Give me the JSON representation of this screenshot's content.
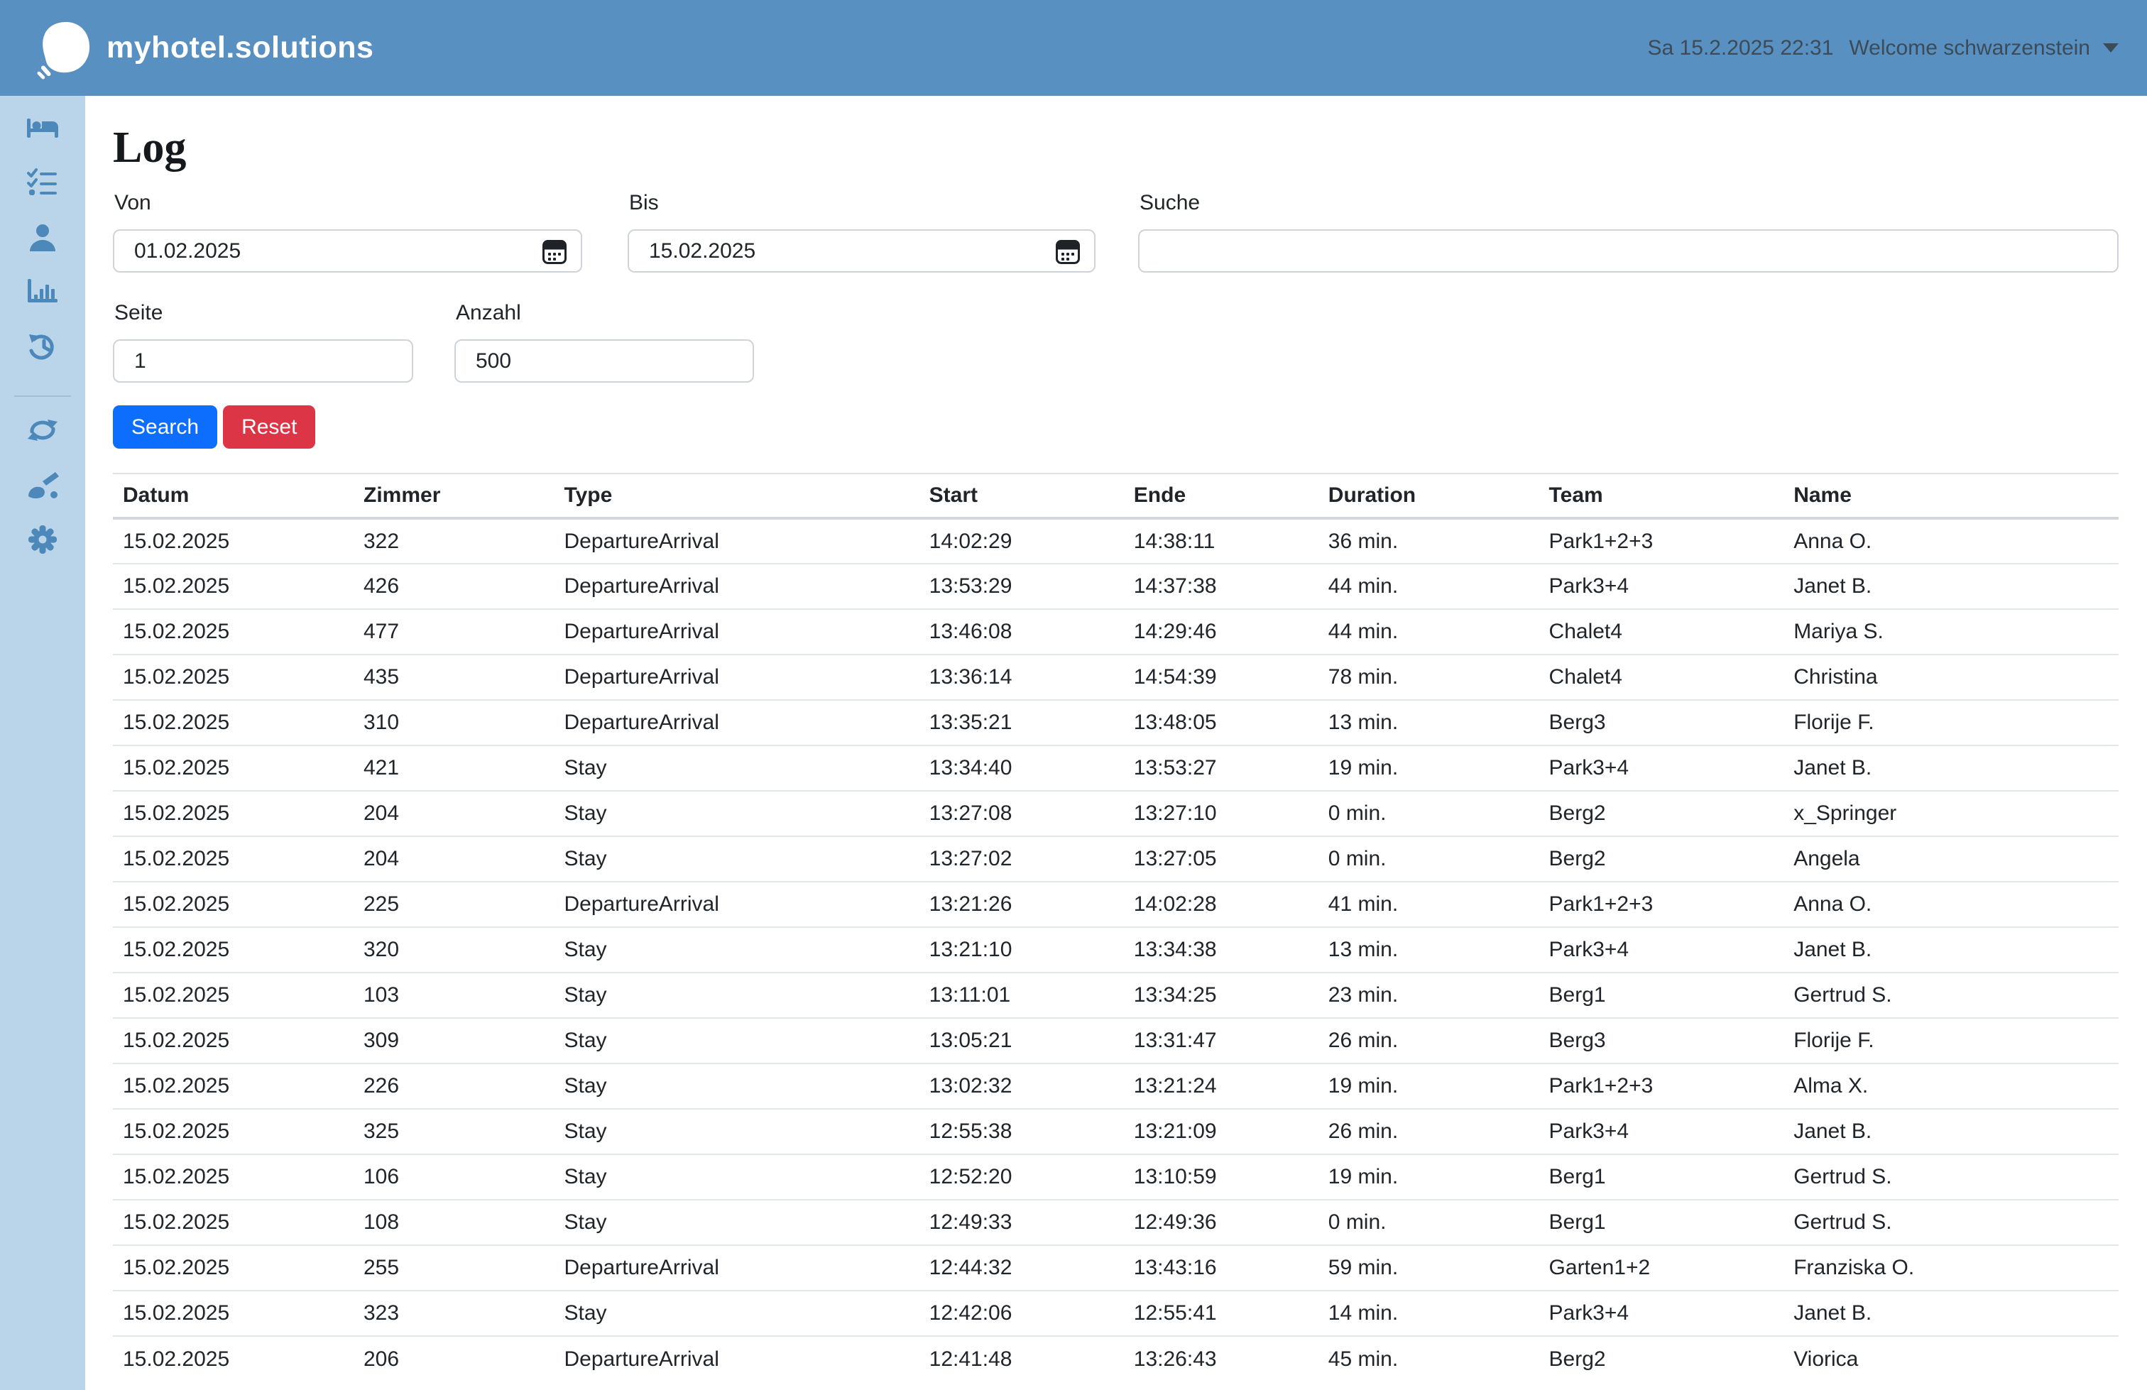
{
  "header": {
    "brand": "myhotel.solutions",
    "datetime": "Sa 15.2.2025 22:31",
    "welcome": "Welcome schwarzenstein"
  },
  "sidebar": {
    "items": [
      {
        "name": "rooms",
        "icon": "bed-icon"
      },
      {
        "name": "tasks",
        "icon": "checklist-icon"
      },
      {
        "name": "users",
        "icon": "user-icon"
      },
      {
        "name": "statistics",
        "icon": "bar-chart-icon"
      },
      {
        "name": "history",
        "icon": "history-icon"
      },
      {
        "name": "sync",
        "icon": "sync-icon"
      },
      {
        "name": "cleaning",
        "icon": "broom-icon"
      },
      {
        "name": "settings",
        "icon": "gear-icon"
      }
    ]
  },
  "page": {
    "title": "Log"
  },
  "filters": {
    "von": {
      "label": "Von",
      "value": "01.02.2025"
    },
    "bis": {
      "label": "Bis",
      "value": "15.02.2025"
    },
    "suche": {
      "label": "Suche",
      "value": ""
    },
    "seite": {
      "label": "Seite",
      "value": "1"
    },
    "anzahl": {
      "label": "Anzahl",
      "value": "500"
    },
    "search_label": "Search",
    "reset_label": "Reset"
  },
  "table": {
    "columns": [
      "Datum",
      "Zimmer",
      "Type",
      "Start",
      "Ende",
      "Duration",
      "Team",
      "Name"
    ],
    "rows": [
      [
        "15.02.2025",
        "322",
        "DepartureArrival",
        "14:02:29",
        "14:38:11",
        "36 min.",
        "Park1+2+3",
        "Anna O."
      ],
      [
        "15.02.2025",
        "426",
        "DepartureArrival",
        "13:53:29",
        "14:37:38",
        "44 min.",
        "Park3+4",
        "Janet B."
      ],
      [
        "15.02.2025",
        "477",
        "DepartureArrival",
        "13:46:08",
        "14:29:46",
        "44 min.",
        "Chalet4",
        "Mariya S."
      ],
      [
        "15.02.2025",
        "435",
        "DepartureArrival",
        "13:36:14",
        "14:54:39",
        "78 min.",
        "Chalet4",
        "Christina"
      ],
      [
        "15.02.2025",
        "310",
        "DepartureArrival",
        "13:35:21",
        "13:48:05",
        "13 min.",
        "Berg3",
        "Florije F."
      ],
      [
        "15.02.2025",
        "421",
        "Stay",
        "13:34:40",
        "13:53:27",
        "19 min.",
        "Park3+4",
        "Janet B."
      ],
      [
        "15.02.2025",
        "204",
        "Stay",
        "13:27:08",
        "13:27:10",
        "0 min.",
        "Berg2",
        "x_Springer"
      ],
      [
        "15.02.2025",
        "204",
        "Stay",
        "13:27:02",
        "13:27:05",
        "0 min.",
        "Berg2",
        "Angela"
      ],
      [
        "15.02.2025",
        "225",
        "DepartureArrival",
        "13:21:26",
        "14:02:28",
        "41 min.",
        "Park1+2+3",
        "Anna O."
      ],
      [
        "15.02.2025",
        "320",
        "Stay",
        "13:21:10",
        "13:34:38",
        "13 min.",
        "Park3+4",
        "Janet B."
      ],
      [
        "15.02.2025",
        "103",
        "Stay",
        "13:11:01",
        "13:34:25",
        "23 min.",
        "Berg1",
        "Gertrud S."
      ],
      [
        "15.02.2025",
        "309",
        "Stay",
        "13:05:21",
        "13:31:47",
        "26 min.",
        "Berg3",
        "Florije F."
      ],
      [
        "15.02.2025",
        "226",
        "Stay",
        "13:02:32",
        "13:21:24",
        "19 min.",
        "Park1+2+3",
        "Alma X."
      ],
      [
        "15.02.2025",
        "325",
        "Stay",
        "12:55:38",
        "13:21:09",
        "26 min.",
        "Park3+4",
        "Janet B."
      ],
      [
        "15.02.2025",
        "106",
        "Stay",
        "12:52:20",
        "13:10:59",
        "19 min.",
        "Berg1",
        "Gertrud S."
      ],
      [
        "15.02.2025",
        "108",
        "Stay",
        "12:49:33",
        "12:49:36",
        "0 min.",
        "Berg1",
        "Gertrud S."
      ],
      [
        "15.02.2025",
        "255",
        "DepartureArrival",
        "12:44:32",
        "13:43:16",
        "59 min.",
        "Garten1+2",
        "Franziska O."
      ],
      [
        "15.02.2025",
        "323",
        "Stay",
        "12:42:06",
        "12:55:41",
        "14 min.",
        "Park3+4",
        "Janet B."
      ],
      [
        "15.02.2025",
        "206",
        "DepartureArrival",
        "12:41:48",
        "13:26:43",
        "45 min.",
        "Berg2",
        "Viorica"
      ]
    ]
  },
  "colors": {
    "header_bg": "#5890c1",
    "sidebar_bg": "#bad5ea",
    "sidebar_icon": "#4c88b9",
    "search_button": "#0d6efd",
    "reset_button": "#dc3545",
    "table_border": "#dee2e6",
    "text": "#212529"
  }
}
